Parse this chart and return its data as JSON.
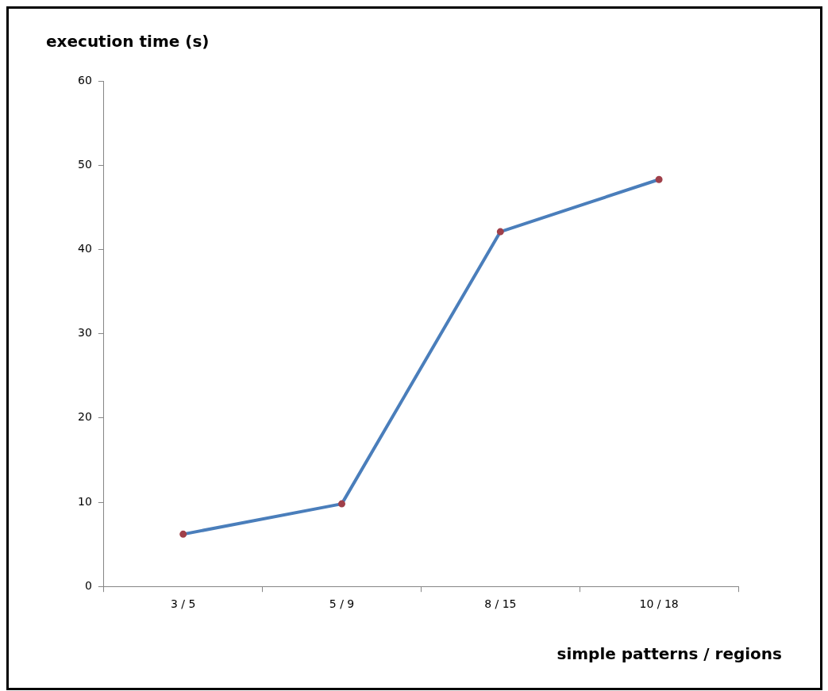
{
  "chart_data": {
    "type": "line",
    "ylabel": "execution time (s)",
    "xlabel": "simple patterns / regions",
    "categories": [
      "3 / 5",
      "5 / 9",
      "8 / 15",
      "10 / 18"
    ],
    "series": [
      {
        "color": "#4a7ebb",
        "values": [
          6.2,
          9.8,
          42.1,
          48.3
        ]
      }
    ],
    "ylim": [
      0,
      60
    ],
    "yticks": [
      0,
      10,
      20,
      30,
      40,
      50,
      60
    ],
    "grid": false,
    "legend": false,
    "marker": "circle",
    "line_style": "solid"
  }
}
